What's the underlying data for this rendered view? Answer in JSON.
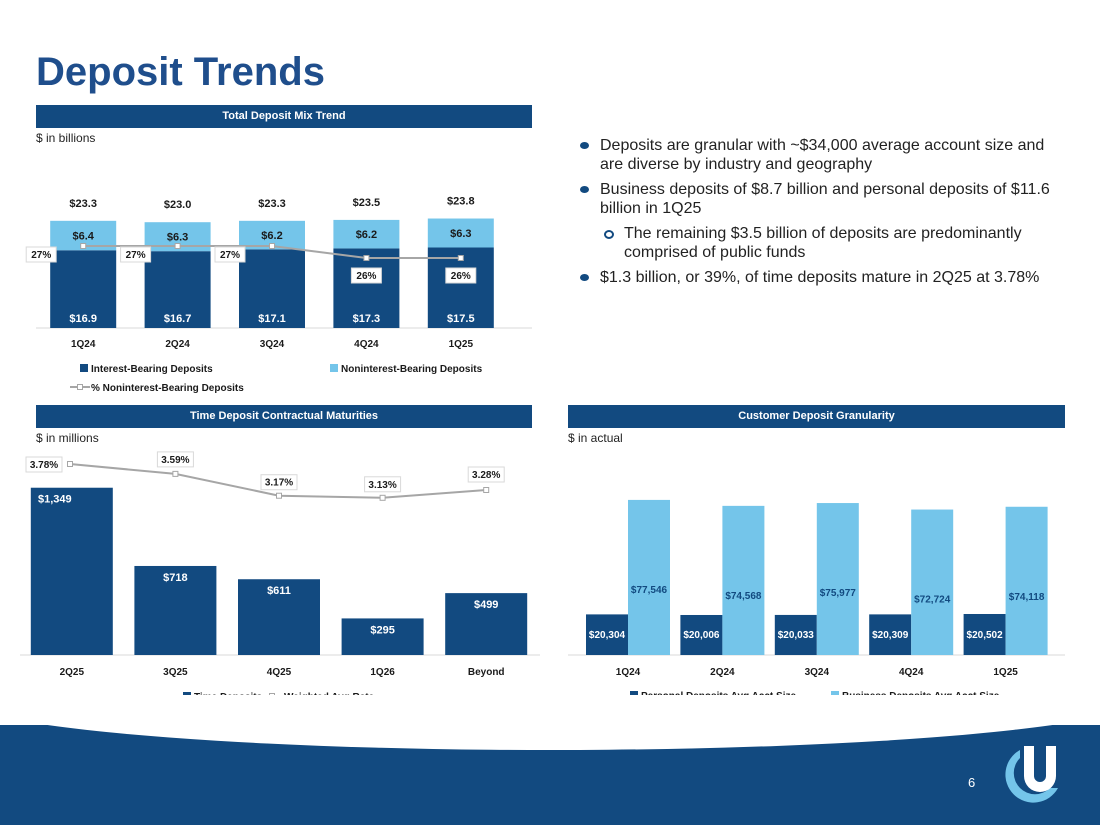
{
  "page": {
    "title": "Deposit Trends",
    "page_number": "6"
  },
  "colors": {
    "dark_blue": "#124a80",
    "light_blue": "#74c5ea",
    "line_gray": "#a6a6a6"
  },
  "bullets": {
    "items": [
      {
        "text": "Deposits are granular with ~$34,000 average account size and are diverse by industry and geography",
        "level": 1
      },
      {
        "text": "Business deposits of $8.7 billion and personal deposits of $11.6 billion in 1Q25",
        "level": 1
      },
      {
        "text": "The remaining $3.5 billion of deposits are predominantly comprised of public funds",
        "level": 2
      },
      {
        "text": "$1.3 billion, or 39%, of time deposits mature in 2Q25 at 3.78%",
        "level": 1
      }
    ]
  },
  "chart_data": [
    {
      "type": "bar",
      "stacked": true,
      "title": "Total Deposit Mix Trend",
      "unit_label": "$ in billions",
      "categories": [
        "1Q24",
        "2Q24",
        "3Q24",
        "4Q24",
        "1Q25"
      ],
      "series": [
        {
          "name": "Interest-Bearing Deposits",
          "values": [
            16.9,
            16.7,
            17.1,
            17.3,
            17.5
          ],
          "labels": [
            "$16.9",
            "$16.7",
            "$17.1",
            "$17.3",
            "$17.5"
          ]
        },
        {
          "name": "Noninterest-Bearing Deposits",
          "values": [
            6.4,
            6.3,
            6.2,
            6.2,
            6.3
          ],
          "labels": [
            "$6.4",
            "$6.3",
            "$6.2",
            "$6.2",
            "$6.3"
          ]
        },
        {
          "name": "% Noninterest-Bearing Deposits",
          "type": "line",
          "values": [
            27,
            27,
            27,
            26,
            26
          ],
          "labels": [
            "27%",
            "27%",
            "27%",
            "26%",
            "26%"
          ]
        }
      ],
      "totals": [
        23.3,
        23.0,
        23.3,
        23.5,
        23.8
      ],
      "total_labels": [
        "$23.3",
        "$23.0",
        "$23.3",
        "$23.5",
        "$23.8"
      ],
      "legend": [
        "Interest-Bearing Deposits",
        "Noninterest-Bearing Deposits",
        "% Noninterest-Bearing Deposits"
      ]
    },
    {
      "type": "bar",
      "title": "Time Deposit Contractual Maturities",
      "unit_label": "$ in millions",
      "categories": [
        "2Q25",
        "3Q25",
        "4Q25",
        "1Q26",
        "Beyond"
      ],
      "series": [
        {
          "name": "Time Deposits",
          "values": [
            1349,
            718,
            611,
            295,
            499
          ],
          "labels": [
            "$1,349",
            "$718",
            "$611",
            "$295",
            "$499"
          ]
        },
        {
          "name": "Weighted Avg Rate",
          "type": "line",
          "values": [
            3.78,
            3.59,
            3.17,
            3.13,
            3.28
          ],
          "labels": [
            "3.78%",
            "3.59%",
            "3.17%",
            "3.13%",
            "3.28%"
          ]
        }
      ],
      "legend": [
        "Time Deposits",
        "Weighted Avg Rate"
      ]
    },
    {
      "type": "bar",
      "title": "Customer Deposit Granularity",
      "unit_label": "$ in actual",
      "categories": [
        "1Q24",
        "2Q24",
        "3Q24",
        "4Q24",
        "1Q25"
      ],
      "series": [
        {
          "name": "Personal Deposits Avg Acct Size",
          "values": [
            20304,
            20006,
            20033,
            20309,
            20502
          ],
          "labels": [
            "$20,304",
            "$20,006",
            "$20,033",
            "$20,309",
            "$20,502"
          ]
        },
        {
          "name": "Business Deposits Avg Acct Size",
          "values": [
            77546,
            74568,
            75977,
            72724,
            74118
          ],
          "labels": [
            "$77,546",
            "$74,568",
            "$75,977",
            "$72,724",
            "$74,118"
          ]
        }
      ],
      "legend": [
        "Personal Deposits Avg Acct Size",
        "Business Deposits Avg Acct Size"
      ]
    }
  ]
}
